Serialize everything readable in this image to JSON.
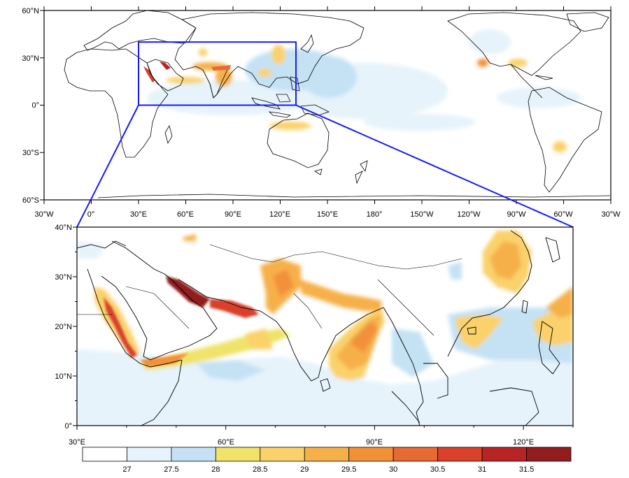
{
  "global_map": {
    "lat_labels": [
      "60°N",
      "30°N",
      "0°",
      "30°S",
      "60°S"
    ],
    "lon_labels": [
      "30°W",
      "0°",
      "30°E",
      "60°E",
      "90°E",
      "120°E",
      "150°E",
      "180°",
      "150°W",
      "120°W",
      "90°W",
      "60°W",
      "30°W"
    ],
    "box_region": {
      "lon_min": 30,
      "lon_max": 130,
      "lat_min": 0,
      "lat_max": 40
    },
    "box_color": "#1a1aff"
  },
  "zoom_map": {
    "lat_labels": [
      "40°N",
      "30°N",
      "20°N",
      "10°N",
      "0°"
    ],
    "lon_labels": [
      "30°E",
      "60°E",
      "90°E",
      "120°E"
    ]
  },
  "colorbar": {
    "labels": [
      "27",
      "27.5",
      "28",
      "28.5",
      "29",
      "29.5",
      "30",
      "30.5",
      "31",
      "31.5"
    ],
    "colors": [
      "#ffffff",
      "#e6f3fb",
      "#c4e2f4",
      "#efe36a",
      "#fad16a",
      "#f6b04a",
      "#f2903a",
      "#e66a34",
      "#d9412b",
      "#b82424",
      "#931c1e"
    ]
  }
}
